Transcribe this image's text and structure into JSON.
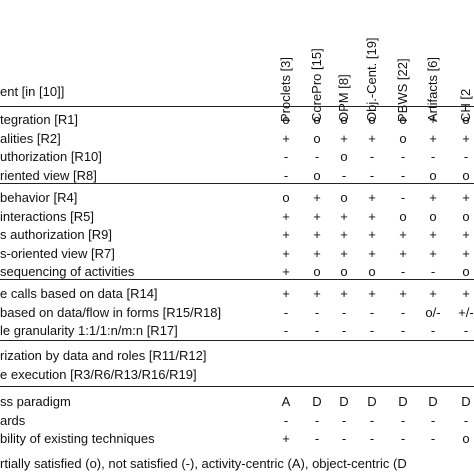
{
  "header": {
    "requirement_label": "ent [in [10]]",
    "columns": [
      "Proclets [3]",
      "CorePro [15]",
      "OPM [8]",
      "Obj.-Cent. [19]",
      "PBWS [22]",
      "Artifacts [6]",
      "CH [2"
    ]
  },
  "groups": [
    {
      "rows": [
        {
          "label": "tegration [R1]",
          "values": [
            "o",
            "o",
            "o",
            "o",
            "o",
            "+",
            "o"
          ]
        },
        {
          "label": "alities [R2]",
          "values": [
            "+",
            "o",
            "+",
            "+",
            "o",
            "+",
            "+"
          ]
        },
        {
          "label": "uthorization [R10]",
          "values": [
            "-",
            "-",
            "o",
            "-",
            "-",
            "-",
            "-"
          ]
        },
        {
          "label": "riented view [R8]",
          "values": [
            "-",
            "o",
            "-",
            "-",
            "-",
            "o",
            "o"
          ]
        }
      ]
    },
    {
      "rows": [
        {
          "label": "behavior [R4]",
          "values": [
            "o",
            "+",
            "o",
            "+",
            "-",
            "+",
            "+"
          ]
        },
        {
          "label": "interactions [R5]",
          "values": [
            "+",
            "+",
            "+",
            "+",
            "o",
            "o",
            "o"
          ]
        },
        {
          "label": "s authorization [R9]",
          "values": [
            "+",
            "+",
            "+",
            "+",
            "+",
            "+",
            "+"
          ]
        },
        {
          "label": "s-oriented view [R7]",
          "values": [
            "+",
            "+",
            "+",
            "+",
            "+",
            "+",
            "+"
          ]
        },
        {
          "label": "sequencing of activities",
          "values": [
            "+",
            "o",
            "o",
            "o",
            "-",
            "-",
            "o"
          ]
        }
      ]
    },
    {
      "rows": [
        {
          "label": "e calls based on data [R14]",
          "values": [
            "+",
            "+",
            "+",
            "+",
            "+",
            "+",
            "+"
          ]
        },
        {
          "label": "based on data/flow in forms [R15/R18]",
          "values": [
            "-",
            "-",
            "-",
            "-",
            "-",
            "o/-",
            "+/-"
          ]
        },
        {
          "label": "le granularity 1:1/1:n/m:n [R17]",
          "values": [
            "-",
            "-",
            "-",
            "-",
            "-",
            "-",
            "-"
          ]
        }
      ]
    },
    {
      "rows": [
        {
          "label": "rization by data and roles [R11/R12]",
          "values": [
            "",
            "",
            "",
            "",
            "",
            "",
            ""
          ]
        },
        {
          "label": "e execution [R3/R6/R13/R16/R19]",
          "values": [
            "",
            "",
            "",
            "",
            "",
            "",
            ""
          ]
        }
      ]
    },
    {
      "rows": [
        {
          "label": "ss paradigm",
          "values": [
            "A",
            "D",
            "D",
            "D",
            "D",
            "D",
            "D"
          ]
        },
        {
          "label": "ards",
          "values": [
            "-",
            "-",
            "-",
            "-",
            "-",
            "-",
            "-"
          ]
        },
        {
          "label": "bility of existing techniques",
          "values": [
            "+",
            "-",
            "-",
            "-",
            "-",
            "-",
            "o"
          ]
        }
      ]
    }
  ],
  "footnote": "rtially satisfied (o), not satisfied (-), activity-centric (A), object-centric (D"
}
